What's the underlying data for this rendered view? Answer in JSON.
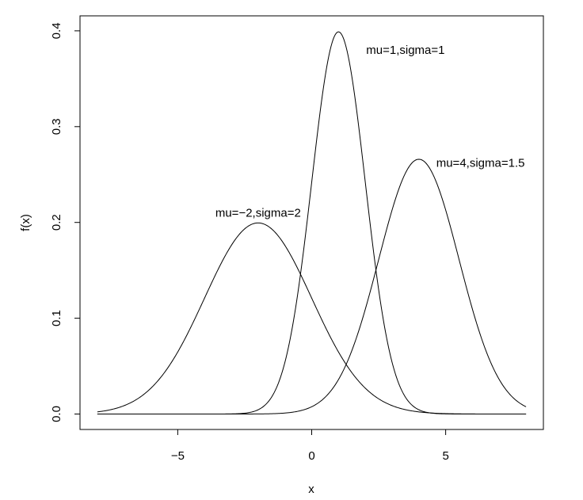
{
  "chart_data": {
    "type": "line",
    "xlabel": "x",
    "ylabel": "f(x)",
    "xlim": [
      -8,
      8
    ],
    "ylim": [
      0,
      0.4
    ],
    "x_ticks": [
      -5,
      0,
      5
    ],
    "x_tick_labels": [
      "−5",
      "0",
      "5"
    ],
    "y_ticks": [
      0.0,
      0.1,
      0.2,
      0.3,
      0.4
    ],
    "y_tick_labels": [
      "0.0",
      "0.1",
      "0.2",
      "0.3",
      "0.4"
    ],
    "grid": false,
    "legend": "none",
    "line_color": "#000000",
    "series": [
      {
        "mu": -2,
        "sigma": 2
      },
      {
        "mu": 1,
        "sigma": 1
      },
      {
        "mu": 4,
        "sigma": 1.5
      }
    ],
    "annotations": [
      {
        "text": "mu=−2,sigma=2",
        "x": -2,
        "y": 0.21
      },
      {
        "text": "mu=1,sigma=1",
        "x": 3.5,
        "y": 0.38
      },
      {
        "text": "mu=4,sigma=1.5",
        "x": 6.3,
        "y": 0.262
      }
    ]
  }
}
